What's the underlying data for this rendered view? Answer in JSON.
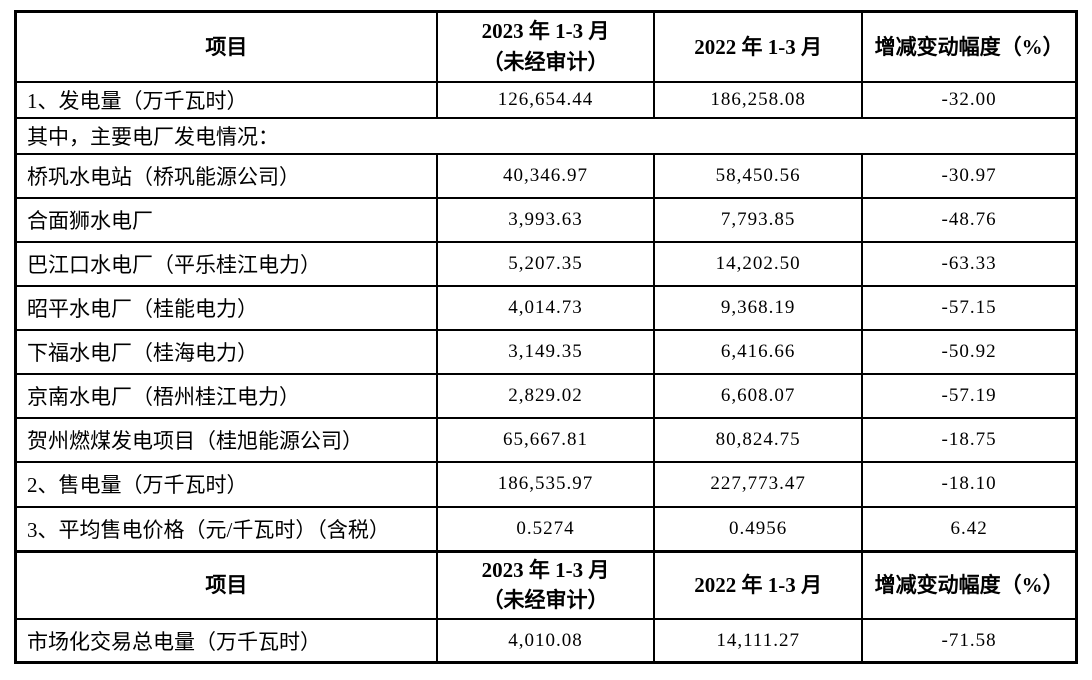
{
  "document": {
    "background_color": "#ffffff",
    "grid_color": "#000000",
    "text_color": "#000000"
  },
  "table": {
    "header": {
      "item": "项目",
      "col_2023_line1": "2023 年 1-3 月",
      "col_2023_line2": "（未经审计）",
      "col_2022": "2022 年 1-3 月",
      "col_change": "增减变动幅度（%）"
    },
    "subheader": {
      "label": "其中，主要电厂发电情况："
    },
    "rows": [
      {
        "label": "1、发电量（万千瓦时）",
        "v2023": "126,654.44",
        "v2022": "186,258.08",
        "change": "-32.00"
      },
      {
        "label": "桥巩水电站（桥巩能源公司）",
        "v2023": "40,346.97",
        "v2022": "58,450.56",
        "change": "-30.97"
      },
      {
        "label": "合面狮水电厂",
        "v2023": "3,993.63",
        "v2022": "7,793.85",
        "change": "-48.76"
      },
      {
        "label": "巴江口水电厂（平乐桂江电力）",
        "v2023": "5,207.35",
        "v2022": "14,202.50",
        "change": "-63.33"
      },
      {
        "label": "昭平水电厂（桂能电力）",
        "v2023": "4,014.73",
        "v2022": "9,368.19",
        "change": "-57.15"
      },
      {
        "label": "下福水电厂（桂海电力）",
        "v2023": "3,149.35",
        "v2022": "6,416.66",
        "change": "-50.92"
      },
      {
        "label": "京南水电厂（梧州桂江电力）",
        "v2023": "2,829.02",
        "v2022": "6,608.07",
        "change": "-57.19"
      },
      {
        "label": "贺州燃煤发电项目（桂旭能源公司）",
        "v2023": "65,667.81",
        "v2022": "80,824.75",
        "change": "-18.75"
      },
      {
        "label": "2、售电量（万千瓦时）",
        "v2023": "186,535.97",
        "v2022": "227,773.47",
        "change": "-18.10"
      },
      {
        "label": "3、平均售电价格（元/千瓦时）（含税）",
        "v2023": "0.5274",
        "v2022": "0.4956",
        "change": "6.42"
      }
    ],
    "market_row": {
      "label": "市场化交易总电量（万千瓦时）",
      "v2023": "4,010.08",
      "v2022": "14,111.27",
      "change": "-71.58"
    }
  }
}
